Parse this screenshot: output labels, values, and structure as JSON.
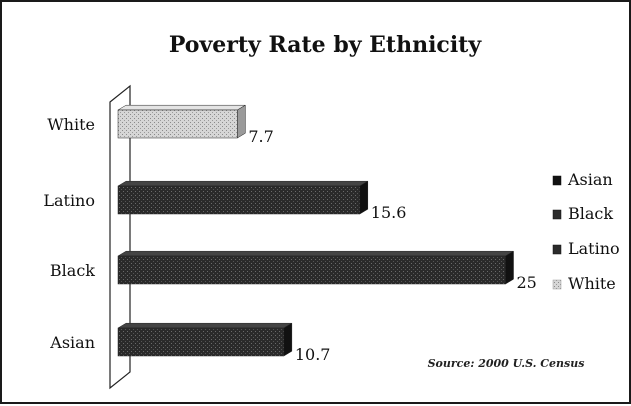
{
  "chart_data": {
    "type": "bar",
    "orientation": "horizontal",
    "title": "Poverty Rate by Ethnicity",
    "xlabel": "",
    "ylabel": "",
    "categories": [
      "White",
      "Latino",
      "Black",
      "Asian"
    ],
    "values": [
      7.7,
      15.6,
      25,
      10.7
    ],
    "data_labels": [
      "7.7",
      "15.6",
      "25",
      "10.7"
    ],
    "xlim": [
      0,
      28
    ],
    "grid": false,
    "legend": {
      "placement": "right",
      "entries": [
        "Asian",
        "Black",
        "Latino",
        "White"
      ]
    },
    "annotation": "Source: 2000 U.S. Census",
    "colors": {
      "White": "#c9c9c9",
      "Latino": "#2b2b2b",
      "Black": "#2b2b2b",
      "Asian": "#111111"
    },
    "legend_colors": [
      "#111111",
      "#2b2b2b",
      "#2b2b2b",
      "#c9c9c9"
    ]
  }
}
